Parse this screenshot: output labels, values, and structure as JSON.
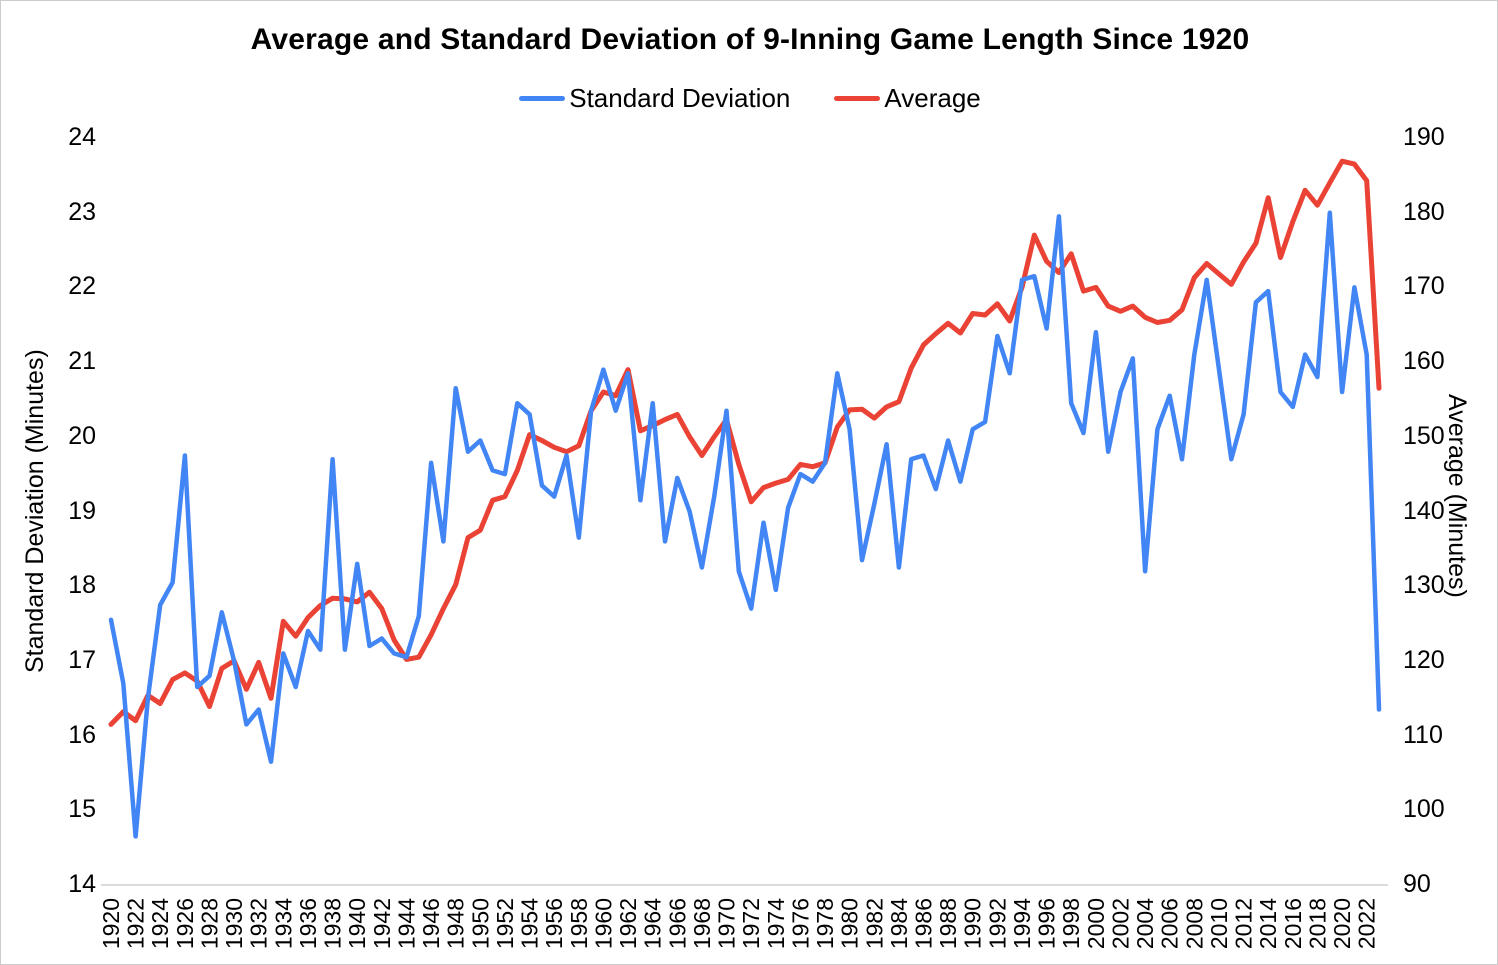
{
  "title": "Average and Standard Deviation of 9-Inning Game Length Since 1920",
  "legend": [
    {
      "label": "Standard Deviation",
      "color": "#4285f4"
    },
    {
      "label": "Average",
      "color": "#ea4335"
    }
  ],
  "left_axis": {
    "title": "Standard Deviation (Minutes)",
    "ticks": [
      24,
      23,
      22,
      21,
      20,
      19,
      18,
      17,
      16,
      15,
      14
    ],
    "range": [
      14,
      24
    ]
  },
  "right_axis": {
    "title": "Average (Minutes)",
    "ticks": [
      190,
      180,
      170,
      160,
      150,
      140,
      130,
      120,
      110,
      100,
      90
    ],
    "range": [
      90,
      190
    ]
  },
  "x_axis": {
    "tick_labels": [
      "1920",
      "1922",
      "1924",
      "1926",
      "1928",
      "1930",
      "1932",
      "1934",
      "1936",
      "1938",
      "1940",
      "1942",
      "1944",
      "1946",
      "1948",
      "1950",
      "1952",
      "1954",
      "1956",
      "1958",
      "1960",
      "1962",
      "1964",
      "1966",
      "1968",
      "1970",
      "1972",
      "1974",
      "1976",
      "1978",
      "1980",
      "1982",
      "1984",
      "1986",
      "1988",
      "1990",
      "1992",
      "1994",
      "1996",
      "1998",
      "2000",
      "2002",
      "2004",
      "2006",
      "2008",
      "2010",
      "2012",
      "2014",
      "2016",
      "2018",
      "2020",
      "2022"
    ]
  },
  "chart_data": {
    "type": "line",
    "title": "Average and Standard Deviation of 9-Inning Game Length Since 1920",
    "x_range": [
      1920,
      2023
    ],
    "grid": false,
    "legend_position": "top",
    "x": [
      1920,
      1921,
      1922,
      1923,
      1924,
      1925,
      1926,
      1927,
      1928,
      1929,
      1930,
      1931,
      1932,
      1933,
      1934,
      1935,
      1936,
      1937,
      1938,
      1939,
      1940,
      1941,
      1942,
      1943,
      1944,
      1945,
      1946,
      1947,
      1948,
      1949,
      1950,
      1951,
      1952,
      1953,
      1954,
      1955,
      1956,
      1957,
      1958,
      1959,
      1960,
      1961,
      1962,
      1963,
      1964,
      1965,
      1966,
      1967,
      1968,
      1969,
      1970,
      1971,
      1972,
      1973,
      1974,
      1975,
      1976,
      1977,
      1978,
      1979,
      1980,
      1981,
      1982,
      1983,
      1984,
      1985,
      1986,
      1987,
      1988,
      1989,
      1990,
      1991,
      1992,
      1993,
      1994,
      1995,
      1996,
      1997,
      1998,
      1999,
      2000,
      2001,
      2002,
      2003,
      2004,
      2005,
      2006,
      2007,
      2008,
      2009,
      2010,
      2011,
      2012,
      2013,
      2014,
      2015,
      2016,
      2017,
      2018,
      2019,
      2020,
      2021,
      2022,
      2023
    ],
    "series": [
      {
        "name": "Standard Deviation",
        "axis": "left",
        "color": "#4285f4",
        "ylim": [
          14,
          24
        ],
        "ylabel": "Standard Deviation (Minutes)",
        "values": [
          17.55,
          16.7,
          14.65,
          16.5,
          17.75,
          18.05,
          19.75,
          16.65,
          16.8,
          17.65,
          17.0,
          16.15,
          16.35,
          15.65,
          17.1,
          16.65,
          17.4,
          17.15,
          19.7,
          17.15,
          18.3,
          17.2,
          17.3,
          17.1,
          17.05,
          17.6,
          19.65,
          18.6,
          20.65,
          19.8,
          19.95,
          19.55,
          19.5,
          20.45,
          20.3,
          19.35,
          19.2,
          19.75,
          18.65,
          20.35,
          20.9,
          20.35,
          20.85,
          19.15,
          20.45,
          18.6,
          19.45,
          19.0,
          18.25,
          19.2,
          20.35,
          18.2,
          17.7,
          18.85,
          17.95,
          19.05,
          19.5,
          19.4,
          19.65,
          20.85,
          20.1,
          18.35,
          19.1,
          19.9,
          18.25,
          19.7,
          19.75,
          19.3,
          19.95,
          19.4,
          20.1,
          20.2,
          21.35,
          20.85,
          22.1,
          22.15,
          21.45,
          22.95,
          20.45,
          20.05,
          21.4,
          19.8,
          20.6,
          21.05,
          18.2,
          20.1,
          20.55,
          19.7,
          21.1,
          22.1,
          20.9,
          19.7,
          20.3,
          21.8,
          21.95,
          20.6,
          20.4,
          21.1,
          20.8,
          23.0,
          20.6,
          22.0,
          21.1,
          16.35
        ]
      },
      {
        "name": "Average",
        "axis": "right",
        "color": "#ea4335",
        "ylim": [
          90,
          190
        ],
        "ylabel": "Average (Minutes)",
        "values": [
          111.5,
          113.2,
          112.0,
          115.4,
          114.3,
          117.5,
          118.4,
          117.3,
          113.9,
          119.0,
          120.0,
          116.2,
          119.8,
          115.0,
          125.3,
          123.3,
          125.8,
          127.4,
          128.4,
          128.3,
          127.9,
          129.2,
          127.0,
          122.8,
          120.2,
          120.5,
          123.5,
          127.0,
          130.2,
          136.5,
          137.5,
          141.5,
          142.0,
          145.5,
          150.3,
          149.5,
          148.6,
          148.0,
          148.8,
          153.5,
          156.0,
          155.5,
          159.0,
          150.8,
          151.5,
          152.3,
          153.0,
          150.0,
          147.5,
          150.0,
          152.3,
          146.3,
          141.3,
          143.2,
          143.8,
          144.3,
          146.3,
          146.0,
          146.5,
          151.3,
          153.6,
          153.7,
          152.5,
          154.0,
          154.7,
          159.2,
          162.3,
          163.8,
          165.2,
          163.9,
          166.5,
          166.3,
          167.8,
          165.5,
          170.0,
          177.0,
          173.5,
          172.0,
          174.5,
          169.5,
          170.0,
          167.5,
          166.8,
          167.5,
          166.0,
          165.3,
          165.6,
          167.0,
          171.3,
          173.2,
          171.8,
          170.4,
          173.4,
          175.9,
          182.0,
          174.0,
          178.8,
          183.0,
          181.0,
          184.0,
          186.9,
          186.5,
          184.3,
          156.5
        ]
      }
    ]
  },
  "layout": {
    "plot": {
      "x1920": 110,
      "x2023": 1378,
      "ytop": 137,
      "ybottom": 884,
      "axis_line_color": "#cfcfcf"
    }
  }
}
